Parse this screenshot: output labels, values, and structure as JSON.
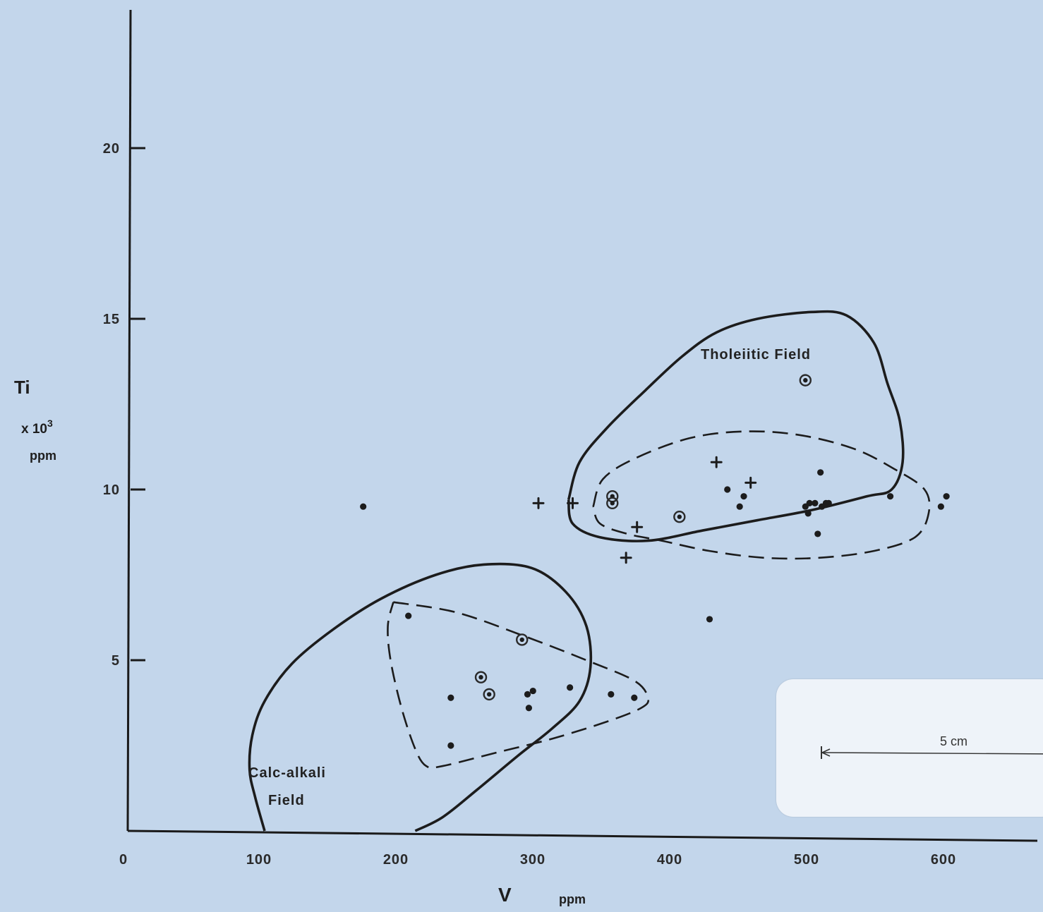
{
  "chart_data": {
    "type": "scatter",
    "title": "",
    "xlabel": "V",
    "xlabel_unit": "ppm",
    "ylabel": "Ti",
    "ylabel_multiplier": "x 10",
    "ylabel_exponent": "3",
    "ylabel_unit": "ppm",
    "xlim": [
      0,
      650
    ],
    "ylim": [
      0,
      24
    ],
    "xticks": [
      0,
      100,
      200,
      300,
      400,
      500,
      600
    ],
    "yticks": [
      5,
      10,
      15,
      20
    ],
    "grid": false,
    "fields": [
      {
        "name": "Tholeiitic Field",
        "line": "solid",
        "outline": [
          [
            322,
            9.7
          ],
          [
            330,
            10.8
          ],
          [
            350,
            11.8
          ],
          [
            378,
            12.9
          ],
          [
            405,
            13.9
          ],
          [
            430,
            14.6
          ],
          [
            460,
            15.0
          ],
          [
            500,
            15.2
          ],
          [
            525,
            15.1
          ],
          [
            545,
            14.3
          ],
          [
            555,
            13.1
          ],
          [
            564,
            12.0
          ],
          [
            566,
            10.8
          ],
          [
            558,
            10.0
          ],
          [
            540,
            9.8
          ],
          [
            500,
            9.4
          ],
          [
            460,
            9.1
          ],
          [
            420,
            8.8
          ],
          [
            380,
            8.5
          ],
          [
            345,
            8.6
          ],
          [
            325,
            9.0
          ],
          [
            322,
            9.7
          ]
        ]
      },
      {
        "name": "",
        "line": "dashed",
        "outline": [
          [
            340,
            9.5
          ],
          [
            347,
            10.3
          ],
          [
            370,
            10.9
          ],
          [
            410,
            11.5
          ],
          [
            450,
            11.7
          ],
          [
            490,
            11.6
          ],
          [
            530,
            11.2
          ],
          [
            560,
            10.6
          ],
          [
            582,
            10.0
          ],
          [
            585,
            9.3
          ],
          [
            575,
            8.6
          ],
          [
            545,
            8.2
          ],
          [
            505,
            8.0
          ],
          [
            465,
            8.0
          ],
          [
            425,
            8.2
          ],
          [
            390,
            8.5
          ],
          [
            365,
            8.7
          ],
          [
            345,
            9.0
          ],
          [
            340,
            9.5
          ]
        ]
      },
      {
        "name": "Calc-alkali Field",
        "line": "solid",
        "outline": [
          [
            100,
            0
          ],
          [
            93,
            1.0
          ],
          [
            89,
            1.8
          ],
          [
            91,
            2.8
          ],
          [
            100,
            3.8
          ],
          [
            120,
            4.9
          ],
          [
            150,
            5.9
          ],
          [
            185,
            6.8
          ],
          [
            225,
            7.5
          ],
          [
            260,
            7.8
          ],
          [
            295,
            7.7
          ],
          [
            320,
            7.0
          ],
          [
            335,
            6.0
          ],
          [
            338,
            4.8
          ],
          [
            330,
            3.8
          ],
          [
            310,
            3.0
          ],
          [
            285,
            2.2
          ],
          [
            255,
            1.2
          ],
          [
            230,
            0.4
          ],
          [
            210,
            0
          ]
        ]
      },
      {
        "name": "",
        "line": "dashed",
        "outline": [
          [
            194,
            6.7
          ],
          [
            240,
            6.4
          ],
          [
            290,
            5.7
          ],
          [
            335,
            5.0
          ],
          [
            370,
            4.4
          ],
          [
            380,
            3.9
          ],
          [
            375,
            3.6
          ],
          [
            350,
            3.2
          ],
          [
            310,
            2.7
          ],
          [
            270,
            2.3
          ],
          [
            230,
            1.9
          ],
          [
            218,
            1.9
          ],
          [
            210,
            2.4
          ],
          [
            200,
            3.6
          ],
          [
            192,
            5.0
          ],
          [
            190,
            6.0
          ],
          [
            194,
            6.7
          ]
        ]
      }
    ],
    "series": [
      {
        "marker": "filled-dot",
        "points": [
          [
            172,
            9.5
          ],
          [
            438,
            10.0
          ],
          [
            450,
            9.8
          ],
          [
            447,
            9.5
          ],
          [
            506,
            10.5
          ],
          [
            498,
            9.6
          ],
          [
            502,
            9.6
          ],
          [
            510,
            9.6
          ],
          [
            495,
            9.5
          ],
          [
            507,
            9.5
          ],
          [
            512,
            9.6
          ],
          [
            497,
            9.3
          ],
          [
            504,
            8.7
          ],
          [
            557,
            9.8
          ],
          [
            594,
            9.5
          ],
          [
            598,
            9.8
          ],
          [
            425,
            6.2
          ],
          [
            205,
            6.3
          ],
          [
            236,
            3.9
          ],
          [
            236,
            2.5
          ],
          [
            292,
            4.0
          ],
          [
            296,
            4.1
          ],
          [
            293,
            3.6
          ],
          [
            323,
            4.2
          ],
          [
            353,
            4.0
          ],
          [
            370,
            3.9
          ]
        ]
      },
      {
        "marker": "circled-dot",
        "points": [
          [
            495,
            13.2
          ],
          [
            354,
            9.8
          ],
          [
            354,
            9.6
          ],
          [
            403,
            9.2
          ],
          [
            288,
            5.6
          ],
          [
            258,
            4.5
          ],
          [
            264,
            4.0
          ]
        ]
      },
      {
        "marker": "plus",
        "points": [
          [
            300,
            9.6
          ],
          [
            325,
            9.6
          ],
          [
            430,
            10.8
          ],
          [
            455,
            10.2
          ],
          [
            372,
            8.9
          ],
          [
            364,
            8.0
          ]
        ]
      }
    ],
    "annotations": {
      "tholeiitic_label": "Tholeiitic Field",
      "calc_line1": "Calc-alkali",
      "calc_line2": "Field"
    },
    "scale_bar": {
      "label": "5 cm"
    }
  }
}
